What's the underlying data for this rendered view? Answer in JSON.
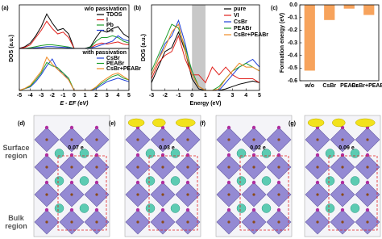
{
  "chart_data": [
    {
      "type": "line",
      "panel": "(a)",
      "ylabel": "DOS (a.u.)",
      "legend_title": "w/o passivation",
      "x": [
        -5,
        -4.5,
        -4,
        -3.5,
        -3,
        -2.5,
        -2,
        -1.5,
        -1,
        -0.5,
        0,
        0.5,
        1,
        1.5,
        2,
        2.5,
        3,
        3.5,
        4,
        4.5,
        5
      ],
      "xlim": [
        -5,
        5
      ],
      "ylim": [
        0,
        1.2
      ],
      "series": [
        {
          "name": "TDOS",
          "color": "#000000",
          "values": [
            0,
            0.05,
            0.15,
            0.35,
            0.6,
            0.95,
            0.7,
            0.5,
            0.55,
            0.4,
            0,
            0,
            0,
            0.05,
            0.3,
            0.5,
            0.45,
            0.55,
            0.6,
            0.4,
            0.3
          ]
        },
        {
          "name": "I",
          "color": "#e0201b",
          "values": [
            0,
            0.03,
            0.1,
            0.3,
            0.5,
            0.75,
            0.55,
            0.4,
            0.45,
            0.3,
            0,
            0,
            0,
            0.02,
            0.1,
            0.15,
            0.12,
            0.15,
            0.18,
            0.12,
            0.1
          ]
        },
        {
          "name": "Pb",
          "color": "#1f9e2c",
          "values": [
            0,
            0,
            0.02,
            0.05,
            0.08,
            0.1,
            0.1,
            0.08,
            0.06,
            0.04,
            0,
            0,
            0,
            0.03,
            0.2,
            0.3,
            0.3,
            0.35,
            0.3,
            0.2,
            0.15
          ]
        },
        {
          "name": "Cs",
          "color": "#1e3fd8",
          "values": [
            0,
            0,
            0,
            0.02,
            0.03,
            0.05,
            0.05,
            0.04,
            0.03,
            0.02,
            0,
            0,
            0,
            0.01,
            0.05,
            0.1,
            0.15,
            0.2,
            0.35,
            0.25,
            0.2
          ]
        }
      ]
    },
    {
      "type": "line",
      "xlabel": "E - EF (eV)",
      "legend_title": "with passivation",
      "x": [
        -5,
        -4.5,
        -4,
        -3.5,
        -3,
        -2.5,
        -2,
        -1.5,
        -1,
        -0.5,
        0,
        0.5,
        1,
        1.5,
        2,
        2.5,
        3,
        3.5,
        4,
        4.5,
        5
      ],
      "xlim": [
        -5,
        5
      ],
      "xticks": [
        -5,
        -4,
        -3,
        -2,
        -1,
        0,
        1,
        2,
        3,
        4,
        5
      ],
      "ylim": [
        0,
        1.2
      ],
      "series": [
        {
          "name": "CsBr",
          "color": "#1e3fd8",
          "values": [
            0,
            0.05,
            0.1,
            0.25,
            0.45,
            0.7,
            0.9,
            0.6,
            0.5,
            0.3,
            0,
            0,
            0,
            0,
            0.05,
            0.15,
            0.25,
            0.3,
            0.35,
            0.3,
            0.25
          ]
        },
        {
          "name": "PEABr",
          "color": "#1f9e2c",
          "values": [
            0,
            0.05,
            0.12,
            0.3,
            0.5,
            0.8,
            0.7,
            0.65,
            0.5,
            0.35,
            0,
            0,
            0,
            0,
            0.08,
            0.2,
            0.3,
            0.4,
            0.45,
            0.35,
            0.3
          ]
        },
        {
          "name": "CsBr+PEABr",
          "color": "#f08a24",
          "values": [
            0,
            0.06,
            0.15,
            0.35,
            0.55,
            0.95,
            0.75,
            0.6,
            0.45,
            0.3,
            0,
            0,
            0,
            0,
            0.1,
            0.25,
            0.35,
            0.45,
            0.5,
            0.4,
            0.3
          ]
        }
      ]
    },
    {
      "type": "line",
      "panel": "(b)",
      "ylabel": "DOS (a.u.)",
      "xlabel": "Energy (eV)",
      "x": [
        -3,
        -2.5,
        -2,
        -1.5,
        -1,
        -0.5,
        0,
        0.5,
        1,
        1.5,
        2,
        2.5,
        3,
        3.5,
        4,
        4.5,
        5
      ],
      "xlim": [
        -3,
        5
      ],
      "xticks": [
        -3,
        -2,
        -1,
        0,
        1,
        2,
        3,
        4,
        5
      ],
      "ylim": [
        0,
        1.1
      ],
      "shaded_x": [
        0,
        1
      ],
      "series": [
        {
          "name": "pure",
          "color": "#000000",
          "values": [
            0.1,
            0.3,
            0.5,
            0.55,
            0.75,
            0.5,
            0.15,
            0.02,
            0,
            0,
            0,
            0.02,
            0.05,
            0.08,
            0.1,
            0.12,
            0.1
          ]
        },
        {
          "name": "VI",
          "color": "#e0201b",
          "values": [
            0.15,
            0.35,
            0.45,
            0.5,
            0.7,
            0.4,
            0.2,
            0.2,
            0.1,
            0.3,
            0.2,
            0.3,
            0.2,
            0.15,
            0.15,
            0.15,
            0.1
          ]
        },
        {
          "name": "CsBr",
          "color": "#1e3fd8",
          "values": [
            0.2,
            0.4,
            0.6,
            0.7,
            0.9,
            0.6,
            0.2,
            0.05,
            0,
            0,
            0,
            0.1,
            0.2,
            0.3,
            0.35,
            0.4,
            0.3
          ]
        },
        {
          "name": "PEABr",
          "color": "#1f9e2c",
          "values": [
            0.25,
            0.45,
            0.65,
            0.85,
            0.8,
            0.55,
            0.25,
            0.05,
            0,
            0,
            0.05,
            0.15,
            0.25,
            0.3,
            0.35,
            0.3,
            0.25
          ]
        },
        {
          "name": "CsBr+PEABr",
          "color": "#f08a24",
          "values": [
            0.2,
            0.4,
            0.55,
            0.75,
            0.85,
            0.5,
            0.2,
            0.05,
            0,
            0,
            0.02,
            0.15,
            0.25,
            0.35,
            0.3,
            0.3,
            0.25
          ]
        }
      ]
    },
    {
      "type": "bar",
      "panel": "(c)",
      "ylabel": "Formation energy (eV)",
      "color": "#f7a35c",
      "categories": [
        "w/o",
        "CsBr",
        "PEABr",
        "CsBr+PEABr"
      ],
      "values": [
        -0.52,
        -0.12,
        -0.03,
        -0.08
      ],
      "ylim": [
        -0.6,
        0
      ],
      "yticks": [
        {
          "value": 0,
          "label": "0.0"
        },
        -0.1,
        -0.2,
        -0.3,
        -0.4,
        -0.5,
        -0.6
      ]
    }
  ],
  "structures": {
    "regions": [
      "Surface region",
      "Bulk region"
    ],
    "panels": [
      {
        "label": "(d)",
        "charge": "0.07 e",
        "isosurface": false
      },
      {
        "label": "(e)",
        "charge": "0.03 e",
        "isosurface": true
      },
      {
        "label": "(f)",
        "charge": "0.02 e",
        "isosurface": false
      },
      {
        "label": "(g)",
        "charge": "0.09 e",
        "isosurface": true
      }
    ]
  }
}
